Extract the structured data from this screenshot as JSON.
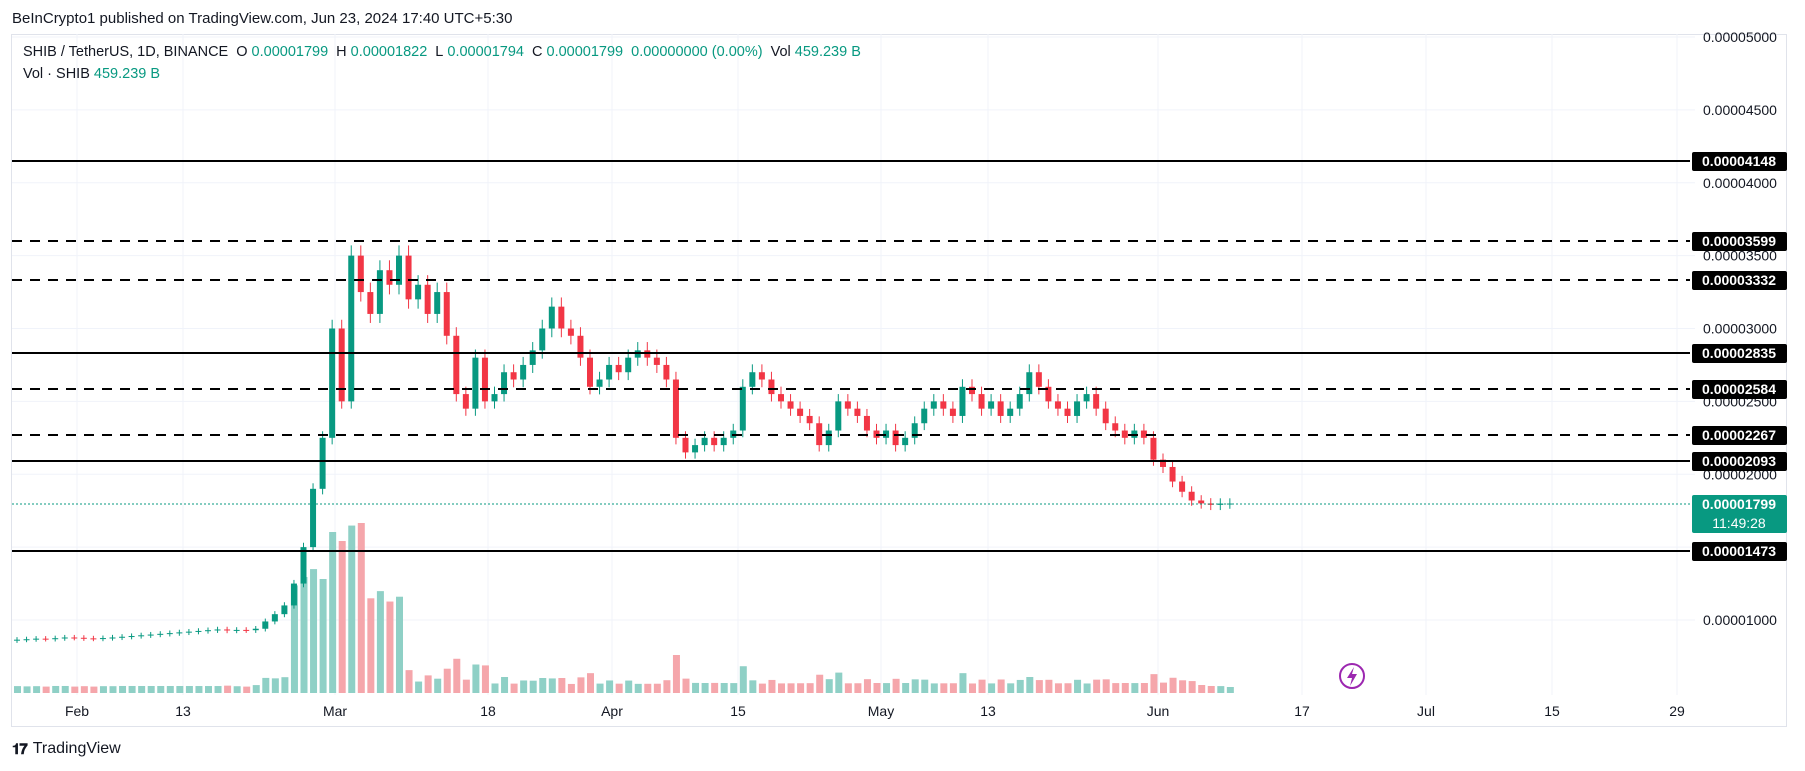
{
  "attribution": "BeInCrypto1 published on TradingView.com, Jun 23, 2024 17:40 UTC+5:30",
  "legend": {
    "symbol": "SHIB / TetherUS, 1D, BINANCE",
    "o_label": "O",
    "o": "0.00001799",
    "h_label": "H",
    "h": "0.00001822",
    "l_label": "L",
    "l": "0.00001794",
    "c_label": "C",
    "c": "0.00001799",
    "change": "0.00000000 (0.00%)",
    "vol_label": "Vol",
    "vol": "459.239 B",
    "vol_line_label": "Vol · SHIB",
    "vol_line_value": "459.239 B"
  },
  "footer": {
    "brand": "TradingView"
  },
  "colors": {
    "up": "#089981",
    "down": "#f23645",
    "up_vol": "#8fd0c6",
    "down_vol": "#f5a6ab",
    "level": "#000000",
    "price_tag": "#089981"
  },
  "chart_data": {
    "type": "candlestick",
    "price_axis_ticks": [
      "0.00005000",
      "0.00004500",
      "0.00004000",
      "0.00003500",
      "0.00003000",
      "0.00002500",
      "0.00002000",
      "0.00001000"
    ],
    "x_axis_ticks": [
      "Feb",
      "13",
      "Mar",
      "18",
      "Apr",
      "15",
      "May",
      "13",
      "Jun",
      "17",
      "Jul",
      "15",
      "29"
    ],
    "levels": [
      {
        "price": 4.148e-05,
        "label": "0.00004148",
        "style": "solid"
      },
      {
        "price": 3.599e-05,
        "label": "0.00003599",
        "style": "dashed"
      },
      {
        "price": 3.332e-05,
        "label": "0.00003332",
        "style": "dashed"
      },
      {
        "price": 2.835e-05,
        "label": "0.00002835",
        "style": "solid"
      },
      {
        "price": 2.584e-05,
        "label": "0.00002584",
        "style": "dashed"
      },
      {
        "price": 2.267e-05,
        "label": "0.00002267",
        "style": "dashed"
      },
      {
        "price": 2.093e-05,
        "label": "0.00002093",
        "style": "solid"
      },
      {
        "price": 1.473e-05,
        "label": "0.00001473",
        "style": "solid"
      }
    ],
    "current_price": {
      "price": 1.799e-05,
      "label": "0.00001799",
      "countdown": "11:49:28"
    },
    "candles_close": [
      8.65e-06,
      8.68e-06,
      8.72e-06,
      8.7e-06,
      8.75e-06,
      8.8e-06,
      8.78e-06,
      8.74e-06,
      8.72e-06,
      8.76e-06,
      8.8e-06,
      8.85e-06,
      8.9e-06,
      8.95e-06,
      9e-06,
      9.05e-06,
      9.1e-06,
      9.15e-06,
      9.2e-06,
      9.25e-06,
      9.3e-06,
      9.35e-06,
      9.28e-06,
      9.32e-06,
      9.3e-06,
      9.4e-06,
      9.9e-06,
      1.04e-05,
      1.1e-05,
      1.25e-05,
      1.5e-05,
      1.9e-05,
      2.25e-05,
      3e-05,
      2.5e-05,
      3.5e-05,
      3.25e-05,
      3.1e-05,
      3.4e-05,
      3.3e-05,
      3.5e-05,
      3.2e-05,
      3.3e-05,
      3.1e-05,
      3.25e-05,
      2.95e-05,
      2.55e-05,
      2.45e-05,
      2.8e-05,
      2.5e-05,
      2.55e-05,
      2.7e-05,
      2.65e-05,
      2.75e-05,
      2.85e-05,
      3e-05,
      3.15e-05,
      3e-05,
      2.95e-05,
      2.8e-05,
      2.6e-05,
      2.65e-05,
      2.75e-05,
      2.7e-05,
      2.8e-05,
      2.85e-05,
      2.8e-05,
      2.75e-05,
      2.65e-05,
      2.25e-05,
      2.15e-05,
      2.2e-05,
      2.25e-05,
      2.2e-05,
      2.25e-05,
      2.3e-05,
      2.6e-05,
      2.7e-05,
      2.65e-05,
      2.55e-05,
      2.5e-05,
      2.45e-05,
      2.4e-05,
      2.35e-05,
      2.2e-05,
      2.3e-05,
      2.5e-05,
      2.45e-05,
      2.4e-05,
      2.3e-05,
      2.25e-05,
      2.3e-05,
      2.2e-05,
      2.25e-05,
      2.35e-05,
      2.45e-05,
      2.5e-05,
      2.45e-05,
      2.4e-05,
      2.6e-05,
      2.55e-05,
      2.45e-05,
      2.5e-05,
      2.4e-05,
      2.45e-05,
      2.55e-05,
      2.7e-05,
      2.6e-05,
      2.5e-05,
      2.45e-05,
      2.4e-05,
      2.5e-05,
      2.55e-05,
      2.45e-05,
      2.35e-05,
      2.3e-05,
      2.25e-05,
      2.3e-05,
      2.25e-05,
      2.1e-05,
      2.05e-05,
      1.95e-05,
      1.88e-05,
      1.82e-05,
      1.8e-05,
      1.79e-05,
      1.799e-05,
      1.799e-05
    ]
  }
}
